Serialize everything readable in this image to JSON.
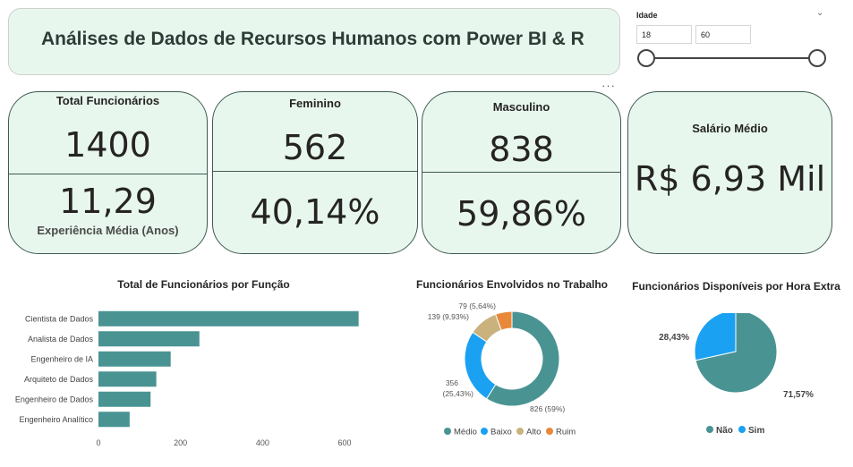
{
  "header": {
    "title": "Análises de Dados de Recursos Humanos com Power BI & R"
  },
  "slicer": {
    "label": "Idade",
    "min_value": "18",
    "max_value": "60",
    "range_min": 18,
    "range_max": 60
  },
  "kpis": {
    "total": {
      "label": "Total Funcionários",
      "value": "1400",
      "sub_value": "11,29",
      "sub_label": "Experiência Média (Anos)"
    },
    "female": {
      "label": "Feminino",
      "value": "562",
      "pct": "40,14%"
    },
    "male": {
      "label": "Masculino",
      "value": "838",
      "pct": "59,86%"
    },
    "salary": {
      "label": "Salário Médio",
      "value": "R$ 6,93 Mil"
    }
  },
  "colors": {
    "teal": "#4a9393",
    "blue": "#1aa1f2",
    "tan": "#c9b27e",
    "orange": "#e8883a",
    "card_bg": "#e8f7ee",
    "card_border": "#3d5a52"
  },
  "chart_data": [
    {
      "type": "bar",
      "orientation": "horizontal",
      "title": "Total de Funcionários por Função",
      "categories": [
        "Cientista de Dados",
        "Analista de Dados",
        "Engenheiro de IA",
        "Arquiteto de Dados",
        "Engenheiro de Dados",
        "Engenheiro Analítico"
      ],
      "values": [
        634,
        246,
        176,
        141,
        127,
        76
      ],
      "xlim": [
        0,
        650
      ],
      "ticks": [
        "0",
        "200",
        "400",
        "600"
      ],
      "tick_values": [
        0,
        200,
        400,
        600
      ]
    },
    {
      "type": "pie",
      "donut": true,
      "title": "Funcionários Envolvidos no Trabalho",
      "slices": [
        {
          "name": "Médio",
          "value": 826,
          "label": "826 (59%)",
          "color": "#4a9393"
        },
        {
          "name": "Baixo",
          "value": 356,
          "label": "356 (25,43%)",
          "color": "#1aa1f2"
        },
        {
          "name": "Alto",
          "value": 139,
          "label": "139 (9,93%)",
          "color": "#c9b27e"
        },
        {
          "name": "Ruim",
          "value": 79,
          "label": "79 (5,64%)",
          "color": "#e8883a"
        }
      ],
      "legend": [
        "Médio",
        "Baixo",
        "Alto",
        "Ruim"
      ]
    },
    {
      "type": "pie",
      "title": "Funcionários Disponíveis por Hora Extra",
      "slices": [
        {
          "name": "Não",
          "value": 71.57,
          "label": "71,57%",
          "color": "#4a9393"
        },
        {
          "name": "Sim",
          "value": 28.43,
          "label": "28,43%",
          "color": "#1aa1f2"
        }
      ],
      "legend": [
        "Não",
        "Sim"
      ]
    }
  ]
}
